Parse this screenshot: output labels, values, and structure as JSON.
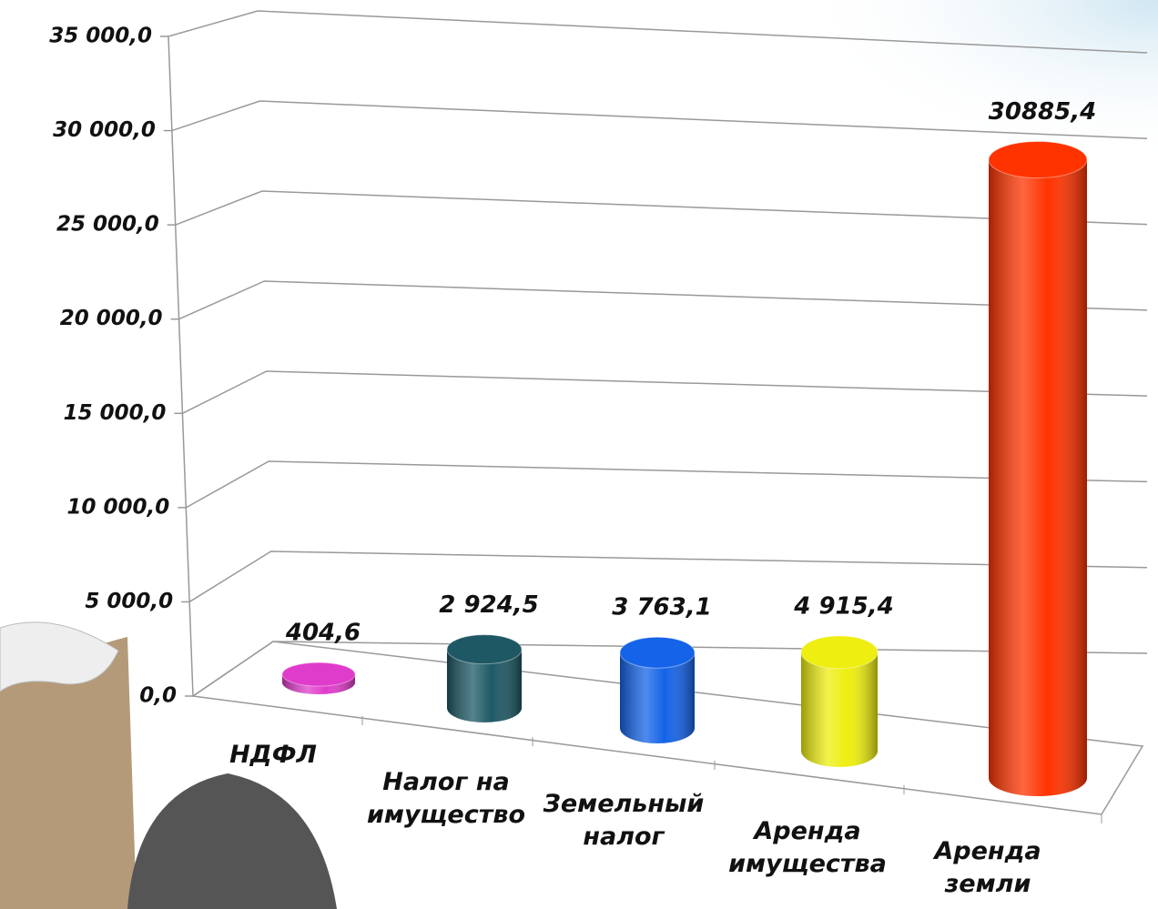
{
  "chart_data": {
    "type": "bar",
    "categories": [
      "НДФЛ",
      "Налог на имущество",
      "Земельный налог",
      "Аренда имущества",
      "Аренда земли"
    ],
    "values": [
      404.6,
      2924.5,
      3763.1,
      4915.4,
      30885.4
    ],
    "value_labels": [
      "404,6",
      "2 924,5",
      "3 763,1",
      "4 915,4",
      "30885,4"
    ],
    "colors": [
      "#e03ccb",
      "#1d5864",
      "#1463e8",
      "#eeee10",
      "#ff3300"
    ],
    "ylim": [
      0,
      35000
    ],
    "yticks": [
      {
        "value": 0,
        "label": "0,0"
      },
      {
        "value": 5000,
        "label": "5 000,0"
      },
      {
        "value": 10000,
        "label": "10 000,0"
      },
      {
        "value": 15000,
        "label": "15 000,0"
      },
      {
        "value": 20000,
        "label": "20 000,0"
      },
      {
        "value": 25000,
        "label": "25 000,0"
      },
      {
        "value": 30000,
        "label": "30 000,0"
      },
      {
        "value": 35000,
        "label": "35 000,0"
      }
    ],
    "grid": true
  }
}
